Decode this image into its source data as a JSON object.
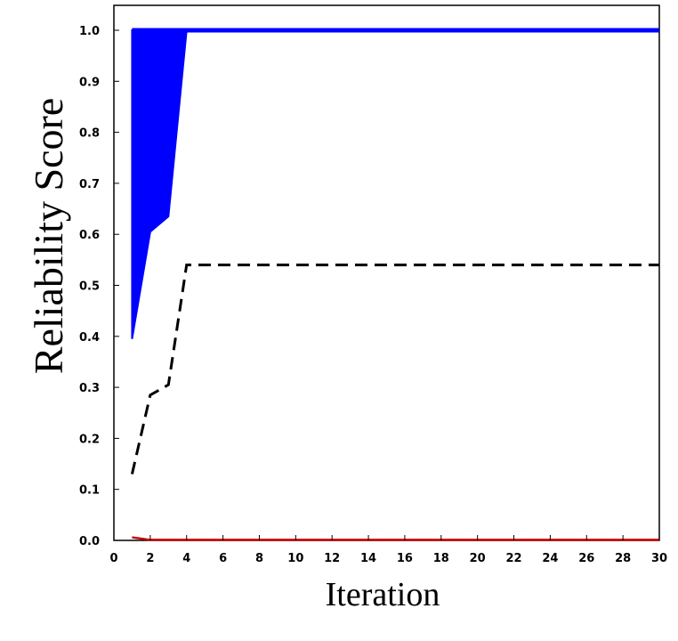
{
  "chart_data": {
    "type": "line",
    "title": "",
    "xlabel": "Iteration",
    "ylabel": "Reliability Score",
    "xlim": [
      0,
      30
    ],
    "ylim": [
      0,
      1.0
    ],
    "x_ticks": [
      "0",
      "2",
      "4",
      "6",
      "8",
      "10",
      "12",
      "14",
      "16",
      "18",
      "20",
      "22",
      "24",
      "26",
      "28",
      "30"
    ],
    "y_ticks": [
      "0.0",
      "0.1",
      "0.2",
      "0.3",
      "0.4",
      "0.5",
      "0.6",
      "0.7",
      "0.8",
      "0.9",
      "1.0"
    ],
    "grid": false,
    "legend": "none",
    "band": {
      "color": "#0000ff",
      "x": [
        1,
        2,
        2.5,
        3,
        4,
        30
      ],
      "upper": [
        1.0,
        1.0,
        1.0,
        1.0,
        1.0,
        1.0
      ],
      "lower": [
        0.395,
        0.605,
        0.62,
        0.635,
        1.0,
        1.0
      ]
    },
    "series": [
      {
        "color": "#000000",
        "style": "dashed",
        "x": [
          1,
          2,
          3,
          4,
          30
        ],
        "values": [
          0.13,
          0.285,
          0.305,
          0.54,
          0.54
        ]
      },
      {
        "color": "#cc0000",
        "style": "solid",
        "x": [
          1,
          2,
          30
        ],
        "values": [
          0.006,
          0.001,
          0.001
        ]
      }
    ]
  }
}
